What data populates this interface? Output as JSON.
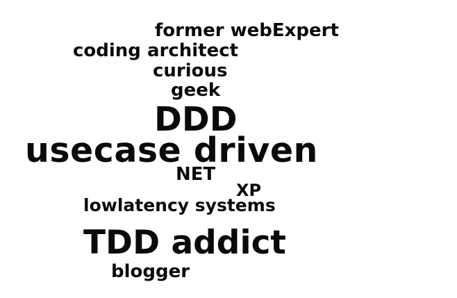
{
  "word_cloud": {
    "text_color": "#0a0a0a",
    "background_color": "#ffffff",
    "words": [
      "former webExpert",
      "coding architect",
      "curious",
      "geek",
      "DDD",
      "usecase driven",
      "NET",
      "XP",
      "lowlatency systems",
      "TDD addict",
      "blogger"
    ]
  }
}
